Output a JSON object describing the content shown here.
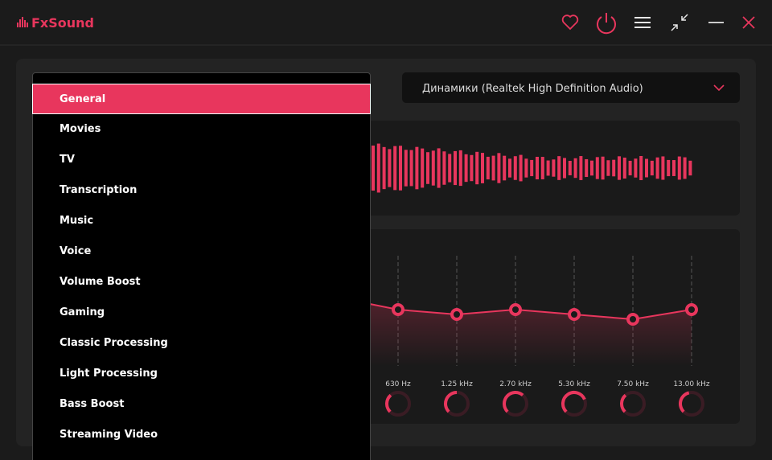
{
  "header": {
    "app_name": "FxSound"
  },
  "preset_menu": {
    "items": [
      "General",
      "Movies",
      "TV",
      "Transcription",
      "Music",
      "Voice",
      "Volume Boost",
      "Gaming",
      "Classic Processing",
      "Light Processing",
      "Bass Boost",
      "Streaming Video"
    ]
  },
  "output_device": {
    "label": "Динамики (Realtek High Definition Audio)"
  },
  "equalizer": {
    "bands": [
      "630 Hz",
      "1.25 kHz",
      "2.70 kHz",
      "5.30 kHz",
      "7.50 kHz",
      "13.00 kHz"
    ]
  }
}
